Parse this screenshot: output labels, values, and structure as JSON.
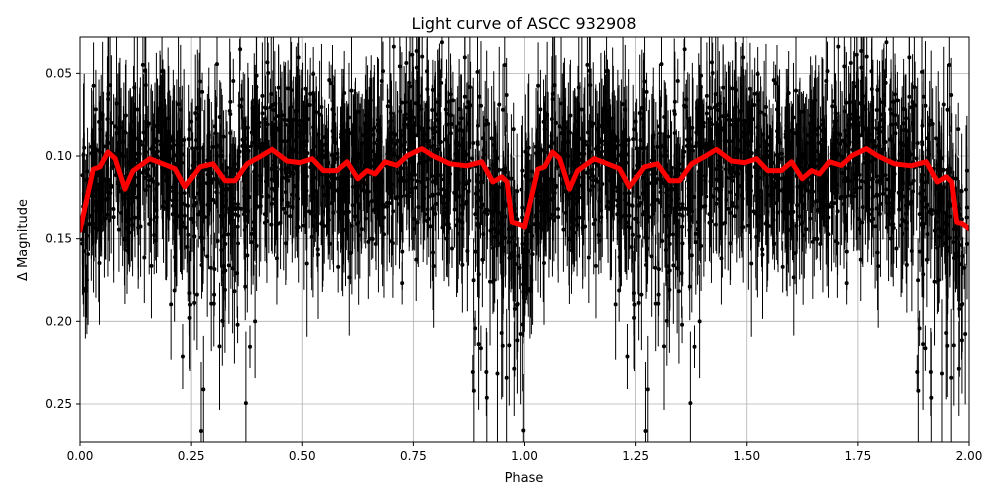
{
  "chart_data": {
    "type": "scatter",
    "title": "Light curve of ASCC 932908",
    "xlabel": "Phase",
    "ylabel": "Δ Magnitude",
    "xlim": [
      0,
      2
    ],
    "ylim": [
      0.273,
      0.028
    ],
    "y_inverted": true,
    "grid": true,
    "x_ticks": [
      "0.00",
      "0.25",
      "0.50",
      "0.75",
      "1.00",
      "1.25",
      "1.50",
      "1.75",
      "2.00"
    ],
    "y_ticks": [
      "0.05",
      "0.10",
      "0.15",
      "0.20",
      "0.25"
    ],
    "colors": {
      "points": "#000000",
      "binned": "#ff0000",
      "grid": "#b0b0b0"
    },
    "series": [
      {
        "kind": "scatter-errorbar",
        "note_visible": false,
        "color": "#000000"
      },
      {
        "kind": "line",
        "color": "#ff0000",
        "x": [
          0,
          0.03,
          0.045,
          0.063,
          0.079,
          0.101,
          0.119,
          0.157,
          0.196,
          0.214,
          0.236,
          0.27,
          0.299,
          0.326,
          0.349,
          0.376,
          0.405,
          0.432,
          0.466,
          0.495,
          0.522,
          0.547,
          0.578,
          0.601,
          0.625,
          0.646,
          0.664,
          0.686,
          0.713,
          0.736,
          0.769,
          0.794,
          0.832,
          0.87,
          0.904,
          0.929,
          0.949,
          0.961,
          0.972,
          0.985,
          0.994,
          1.0,
          1.03,
          1.045,
          1.063,
          1.079,
          1.101,
          1.119,
          1.157,
          1.196,
          1.214,
          1.236,
          1.27,
          1.299,
          1.326,
          1.349,
          1.376,
          1.405,
          1.432,
          1.466,
          1.495,
          1.522,
          1.547,
          1.578,
          1.601,
          1.625,
          1.646,
          1.664,
          1.686,
          1.713,
          1.736,
          1.769,
          1.794,
          1.832,
          1.87,
          1.904,
          1.929,
          1.949,
          1.961,
          1.972,
          1.985,
          2.0
        ],
        "y": [
          0.145,
          0.108,
          0.1065,
          0.0975,
          0.1015,
          0.12,
          0.109,
          0.1016,
          0.1057,
          0.1077,
          0.1187,
          0.1065,
          0.1047,
          0.1149,
          0.1149,
          0.1047,
          0.1004,
          0.096,
          0.103,
          0.104,
          0.1016,
          0.1088,
          0.1088,
          0.1035,
          0.1138,
          0.1088,
          0.1108,
          0.1035,
          0.1057,
          0.0998,
          0.0955,
          0.0998,
          0.1047,
          0.1059,
          0.1035,
          0.1157,
          0.1126,
          0.1157,
          0.14,
          0.141,
          0.142,
          0.143,
          0.108,
          0.1065,
          0.0975,
          0.1015,
          0.12,
          0.109,
          0.1016,
          0.1057,
          0.1077,
          0.1187,
          0.1065,
          0.1047,
          0.1149,
          0.1149,
          0.1047,
          0.1004,
          0.096,
          0.103,
          0.104,
          0.1016,
          0.1088,
          0.1088,
          0.1035,
          0.1138,
          0.1088,
          0.1108,
          0.1035,
          0.1057,
          0.0998,
          0.0955,
          0.0998,
          0.1047,
          0.1059,
          0.1035,
          0.1157,
          0.1126,
          0.1157,
          0.14,
          0.141,
          0.144
        ]
      }
    ]
  }
}
